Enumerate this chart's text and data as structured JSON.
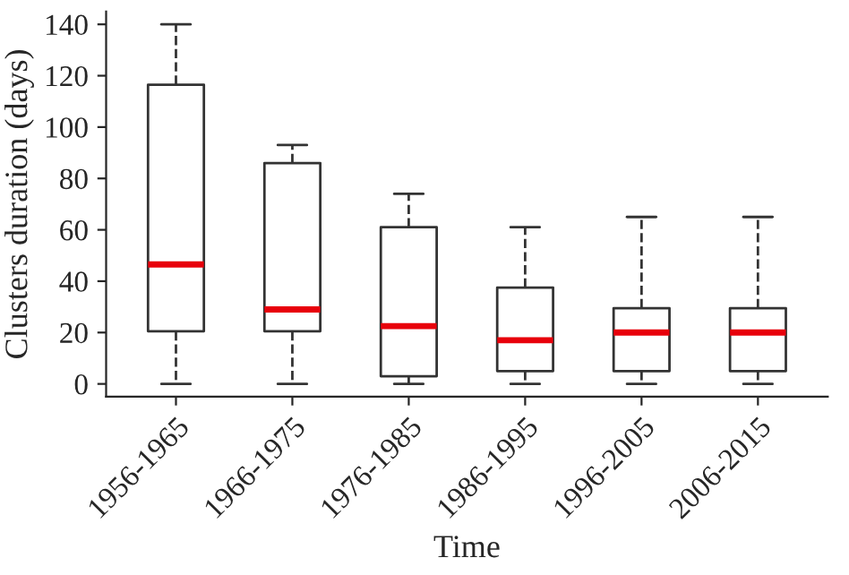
{
  "chart_data": {
    "type": "box",
    "xlabel": "Time",
    "ylabel": "Clusters duration (days)",
    "categories": [
      "1956-1965",
      "1966-1975",
      "1976-1985",
      "1986-1995",
      "1996-2005",
      "2006-2015"
    ],
    "boxes": [
      {
        "low": 0,
        "q1": 20.5,
        "median": 46.5,
        "q3": 116.5,
        "high": 140
      },
      {
        "low": 0,
        "q1": 20.5,
        "median": 29,
        "q3": 86,
        "high": 93
      },
      {
        "low": 0,
        "q1": 3,
        "median": 22.5,
        "q3": 61,
        "high": 74
      },
      {
        "low": 0,
        "q1": 5,
        "median": 17,
        "q3": 37.5,
        "high": 61
      },
      {
        "low": 0,
        "q1": 5,
        "median": 20,
        "q3": 29.5,
        "high": 65
      },
      {
        "low": 0,
        "q1": 5,
        "median": 20,
        "q3": 29.5,
        "high": 65
      }
    ],
    "color": "#333333",
    "ylim": [
      -5,
      145
    ],
    "yticks": [
      0,
      20,
      40,
      60,
      80,
      100,
      120,
      140
    ],
    "grid": false,
    "line_style": "dashed"
  }
}
